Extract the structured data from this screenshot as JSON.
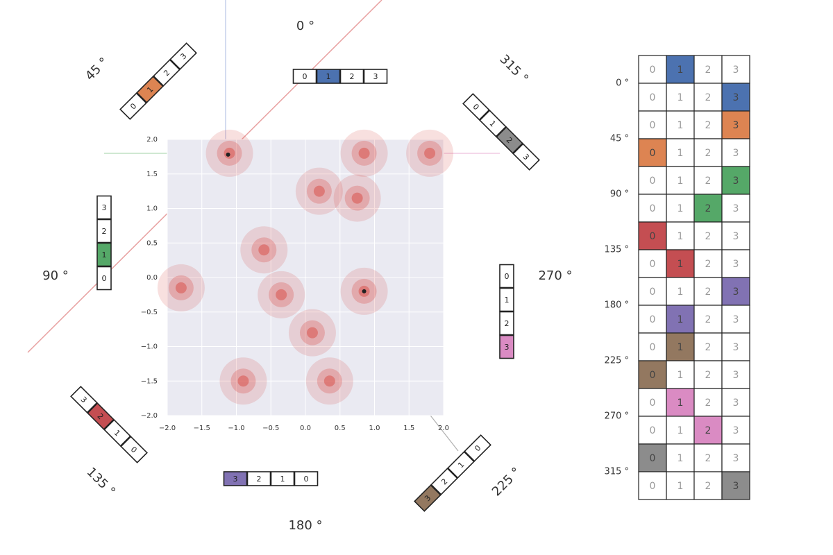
{
  "angle_labels": [
    "0 °",
    "45 °",
    "90 °",
    "135 °",
    "180 °",
    "225 °",
    "270 °",
    "315 °"
  ],
  "contour": {
    "xlim": [
      -2,
      2
    ],
    "ylim": [
      -2,
      2
    ],
    "xticks": [
      {
        "value": -2,
        "label": "−2.0"
      },
      {
        "value": -1.5,
        "label": "−1.5"
      },
      {
        "value": -1,
        "label": "−1.0"
      },
      {
        "value": -0.5,
        "label": "−0.5"
      },
      {
        "value": 0,
        "label": "0.0"
      },
      {
        "value": 0.5,
        "label": "0.5"
      },
      {
        "value": 1,
        "label": "1.0"
      },
      {
        "value": 1.5,
        "label": "1.5"
      },
      {
        "value": 2,
        "label": "2.0"
      }
    ],
    "yticks": [
      {
        "value": -2,
        "label": "−2.0"
      },
      {
        "value": -1.5,
        "label": "−1.5"
      },
      {
        "value": -1,
        "label": "−1.0"
      },
      {
        "value": -0.5,
        "label": "−0.5"
      },
      {
        "value": 0,
        "label": "0.0"
      },
      {
        "value": 0.5,
        "label": "0.5"
      },
      {
        "value": 1,
        "label": "1.0"
      },
      {
        "value": 1.5,
        "label": "1.5"
      },
      {
        "value": 2,
        "label": "2.0"
      }
    ],
    "color": "#d9534f",
    "peaks": {
      "x": [
        -1.1,
        0.85,
        -0.6,
        -1.8,
        0.85,
        0.35,
        0.2,
        0.75,
        -0.35,
        1.8,
        -0.9,
        0.1
      ],
      "y": [
        1.8,
        1.8,
        0.4,
        -0.15,
        -0.2,
        -1.5,
        1.25,
        1.15,
        -0.25,
        1.8,
        -1.5,
        -0.8
      ]
    },
    "markers": {
      "x": [
        -1.12,
        0.85
      ],
      "y": [
        1.78,
        -0.2
      ]
    }
  },
  "strips": [
    {
      "cells": [
        0,
        1,
        2,
        3
      ],
      "highlight": 1,
      "color": "#4c72b0"
    },
    {
      "cells": [
        0,
        1,
        2,
        3
      ],
      "highlight": 1,
      "color": "#dd8452"
    },
    {
      "cells": [
        0,
        1,
        2,
        3
      ],
      "highlight": 1,
      "color": "#55a868"
    },
    {
      "cells": [
        3,
        2,
        1,
        0
      ],
      "highlight": 1,
      "color": "#c44e52"
    },
    {
      "cells": [
        3,
        2,
        1,
        0
      ],
      "highlight": 0,
      "color": "#8172b3"
    },
    {
      "cells": [
        3,
        2,
        1,
        0
      ],
      "highlight": 0,
      "color": "#937860"
    },
    {
      "cells": [
        0,
        1,
        2,
        3
      ],
      "highlight": 3,
      "color": "#da8bc3"
    },
    {
      "cells": [
        0,
        1,
        2,
        3
      ],
      "highlight": 2,
      "color": "#8c8c8c"
    }
  ],
  "table": {
    "row_labels": [
      "0 °",
      "45 °",
      "90 °",
      "135 °",
      "180 °",
      "225 °",
      "270 °",
      "315 °"
    ],
    "rows": [
      {
        "cells": [
          0,
          1,
          2,
          3
        ],
        "highlight": 1,
        "color": "#4c72b0"
      },
      {
        "cells": [
          0,
          1,
          2,
          3
        ],
        "highlight": 3,
        "color": "#4c72b0"
      },
      {
        "cells": [
          0,
          1,
          2,
          3
        ],
        "highlight": 3,
        "color": "#dd8452"
      },
      {
        "cells": [
          0,
          1,
          2,
          3
        ],
        "highlight": 0,
        "color": "#dd8452"
      },
      {
        "cells": [
          0,
          1,
          2,
          3
        ],
        "highlight": 3,
        "color": "#55a868"
      },
      {
        "cells": [
          0,
          1,
          2,
          3
        ],
        "highlight": 2,
        "color": "#55a868"
      },
      {
        "cells": [
          0,
          1,
          2,
          3
        ],
        "highlight": 0,
        "color": "#c44e52"
      },
      {
        "cells": [
          0,
          1,
          2,
          3
        ],
        "highlight": 1,
        "color": "#c44e52"
      },
      {
        "cells": [
          0,
          1,
          2,
          3
        ],
        "highlight": 3,
        "color": "#8172b3"
      },
      {
        "cells": [
          0,
          1,
          2,
          3
        ],
        "highlight": 1,
        "color": "#8172b3"
      },
      {
        "cells": [
          0,
          1,
          2,
          3
        ],
        "highlight": 1,
        "color": "#937860"
      },
      {
        "cells": [
          0,
          1,
          2,
          3
        ],
        "highlight": 0,
        "color": "#937860"
      },
      {
        "cells": [
          0,
          1,
          2,
          3
        ],
        "highlight": 1,
        "color": "#da8bc3"
      },
      {
        "cells": [
          0,
          1,
          2,
          3
        ],
        "highlight": 2,
        "color": "#da8bc3"
      },
      {
        "cells": [
          0,
          1,
          2,
          3
        ],
        "highlight": 0,
        "color": "#8c8c8c"
      },
      {
        "cells": [
          0,
          1,
          2,
          3
        ],
        "highlight": 3,
        "color": "#8c8c8c"
      }
    ]
  }
}
